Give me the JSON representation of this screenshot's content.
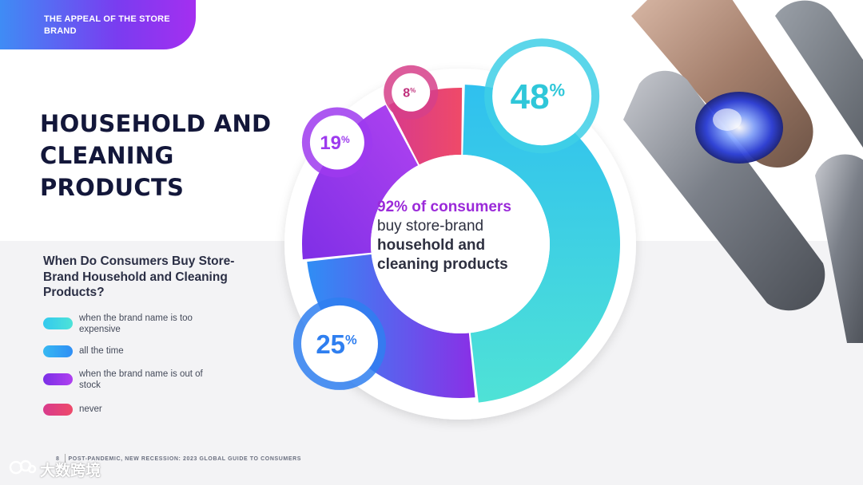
{
  "header_tag": "THE APPEAL OF THE STORE BRAND",
  "title": "HOUSEHOLD AND CLEANING PRODUCTS",
  "legend_heading": "When Do Consumers Buy Store-Brand Household and Cleaning Products?",
  "legend_items": [
    {
      "label": "when the brand name is too expensive",
      "color": "#3fd0e0"
    },
    {
      "label": "all the time",
      "color": "#2f9ef5"
    },
    {
      "label": "when the brand name is out of stock",
      "color": "#8a2fe6"
    },
    {
      "label": "never",
      "color": "#e0407e"
    }
  ],
  "center": {
    "highlight": "92% of consumers",
    "line2": "buy store-brand",
    "line3": "household and",
    "line4": "cleaning products"
  },
  "footer": {
    "page": "8",
    "text": "POST-PANDEMIC, NEW RECESSION: 2023 GLOBAL GUIDE TO CONSUMERS"
  },
  "watermark": "大数跨境",
  "chart_data": {
    "type": "pie",
    "variant": "donut",
    "categories": [
      "when the brand name is too expensive",
      "all the time",
      "when the brand name is out of stock",
      "never"
    ],
    "values": [
      48,
      25,
      19,
      8
    ],
    "value_labels": [
      "48",
      "25",
      "19",
      "8"
    ],
    "unit": "%",
    "colors": [
      [
        "#33c9ee",
        "#4de3d8"
      ],
      [
        "#2f8ef5",
        "#8a2fe6"
      ],
      [
        "#8a2fe6",
        "#a83ff0"
      ],
      [
        "#d83a8c",
        "#ee4a6a"
      ]
    ],
    "legend_placement": "left"
  }
}
